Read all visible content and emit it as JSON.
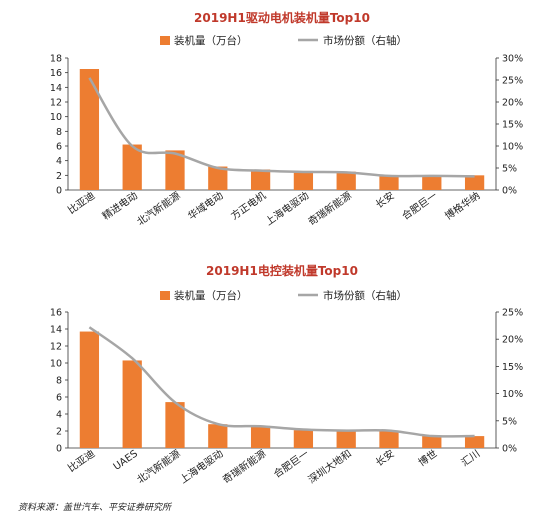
{
  "source": "资料来源：盖世汽车、平安证券研究所",
  "colors": {
    "bar": "#ED7D31",
    "line": "#A6A6A6",
    "title": "#C0392B"
  },
  "chart_data": [
    {
      "type": "bar",
      "title": "2019H1驱动电机装机量Top10",
      "legend": [
        "装机量（万台）",
        "市场份额（右轴）"
      ],
      "legend_placement": "top",
      "categories": [
        "比亚迪",
        "精进电动",
        "北汽新能源",
        "华域电动",
        "方正电机",
        "上海电驱动",
        "奇瑞新能源",
        "长安",
        "合肥巨一",
        "博格华纳"
      ],
      "series": [
        {
          "name": "装机量（万台）",
          "type": "bar",
          "axis": "left",
          "values": [
            16.5,
            6.2,
            5.4,
            3.2,
            2.8,
            2.6,
            2.5,
            2.0,
            2.0,
            2.0
          ]
        },
        {
          "name": "市场份额（右轴）",
          "type": "line",
          "axis": "right",
          "values": [
            25.5,
            10.0,
            8.3,
            5.0,
            4.4,
            4.1,
            4.0,
            3.2,
            3.2,
            3.1
          ]
        }
      ],
      "yleft": {
        "min": 0,
        "max": 18,
        "step": 2,
        "ticks": [
          "0",
          "2",
          "4",
          "6",
          "8",
          "10",
          "12",
          "14",
          "16",
          "18"
        ]
      },
      "yright": {
        "min": 0,
        "max": 30,
        "step": 5,
        "ticks": [
          "0%",
          "5%",
          "10%",
          "15%",
          "20%",
          "25%",
          "30%"
        ]
      },
      "grid": false
    },
    {
      "type": "bar",
      "title": "2019H1电控装机量Top10",
      "legend": [
        "装机量（万台）",
        "市场份额（右轴）"
      ],
      "legend_placement": "top",
      "categories": [
        "比亚迪",
        "UAES",
        "北汽新能源",
        "上海电驱动",
        "奇瑞新能源",
        "合肥巨一",
        "深圳大地和",
        "长安",
        "博世",
        "汇川"
      ],
      "series": [
        {
          "name": "装机量（万台）",
          "type": "bar",
          "axis": "left",
          "values": [
            13.7,
            10.3,
            5.4,
            2.8,
            2.6,
            2.1,
            2.0,
            2.0,
            1.4,
            1.4
          ]
        },
        {
          "name": "市场份额（右轴）",
          "type": "line",
          "axis": "right",
          "values": [
            22.2,
            16.5,
            8.4,
            4.4,
            4.0,
            3.4,
            3.2,
            3.2,
            2.2,
            2.2
          ]
        }
      ],
      "yleft": {
        "min": 0,
        "max": 16,
        "step": 2,
        "ticks": [
          "0",
          "2",
          "4",
          "6",
          "8",
          "10",
          "12",
          "14",
          "16"
        ]
      },
      "yright": {
        "min": 0,
        "max": 25,
        "step": 5,
        "ticks": [
          "0%",
          "5%",
          "10%",
          "15%",
          "20%",
          "25%"
        ]
      },
      "grid": false
    }
  ]
}
